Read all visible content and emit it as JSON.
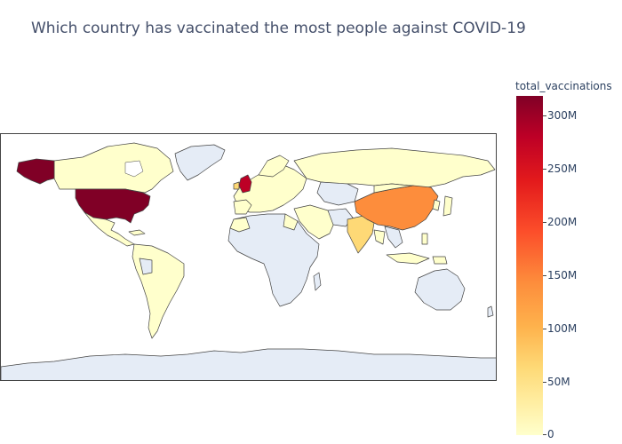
{
  "title": "Which country has vaccinated the most people against COVID-19",
  "colorbar": {
    "title": "total_vaccinations",
    "ticks": [
      "300M",
      "250M",
      "200M",
      "150M",
      "100M",
      "50M",
      "0"
    ],
    "scale": [
      "#ffffcc",
      "#ffeda0",
      "#fed976",
      "#feb24c",
      "#fd8d3c",
      "#fc4e2a",
      "#e31a1c",
      "#bd0026",
      "#800026"
    ]
  },
  "map": {
    "projection": "equirectangular",
    "no_data_color": "#e5ecf6",
    "land_border_color": "#444444"
  },
  "chart_data": {
    "type": "choropleth",
    "title": "Which country has vaccinated the most people against COVID-19",
    "colorbar_title": "total_vaccinations",
    "range": [
      0,
      320000000
    ],
    "countries": [
      {
        "name": "United States",
        "value": 320000000
      },
      {
        "name": "China",
        "value": 180000000
      },
      {
        "name": "United Kingdom",
        "value": 250000000
      },
      {
        "name": "India",
        "value": 30000000
      },
      {
        "name": "Brazil",
        "value": 20000000
      },
      {
        "name": "Canada",
        "value": 15000000
      },
      {
        "name": "Russia",
        "value": 15000000
      },
      {
        "name": "Germany",
        "value": 15000000
      },
      {
        "name": "Mexico",
        "value": 10000000
      }
    ]
  }
}
